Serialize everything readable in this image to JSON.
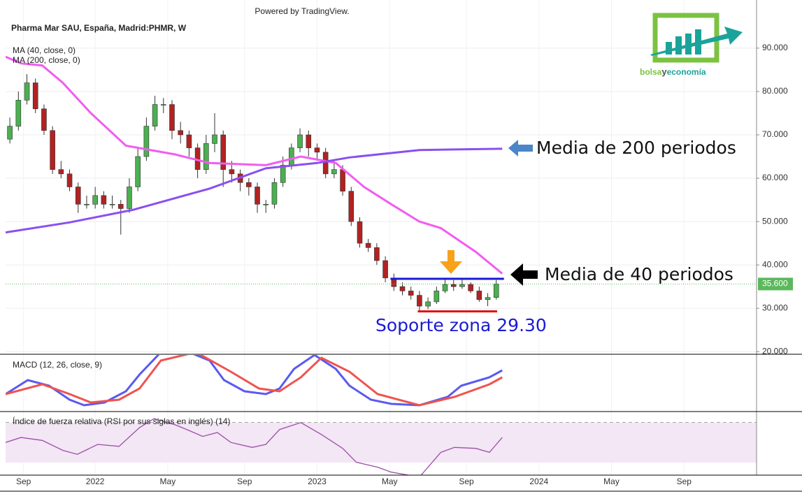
{
  "chart_data": {
    "type": "candlestick",
    "title": "Pharma Mar SAU, España, Madrid:PHMR, W",
    "credit": "Powered by TradingView.",
    "logo": {
      "left": "bolsa",
      "middle": "y",
      "right": "economía"
    },
    "legend_lines": [
      "MA (40, close, 0)",
      "MA (200, close, 0)"
    ],
    "annotations": [
      "Media de 200 periodos",
      "Media de 40 periodos",
      "Soporte zona 29.30"
    ],
    "xlim": [
      0,
      88
    ],
    "xticks": [
      {
        "value": 2.1,
        "label": "Sep"
      },
      {
        "value": 10.5,
        "label": "2022"
      },
      {
        "value": 19,
        "label": "May"
      },
      {
        "value": 28,
        "label": "Sep"
      },
      {
        "value": 36.5,
        "label": "2023"
      },
      {
        "value": 45,
        "label": "May"
      },
      {
        "value": 54,
        "label": "Sep"
      },
      {
        "value": 62.5,
        "label": "2024"
      },
      {
        "value": 71,
        "label": "May"
      },
      {
        "value": 79.5,
        "label": "Sep"
      }
    ],
    "ylim": [
      19.4,
      101.1
    ],
    "yticks": [
      {
        "value": 20,
        "label": "20.000"
      },
      {
        "value": 30,
        "label": "30.000"
      },
      {
        "value": 40,
        "label": "40.000"
      },
      {
        "value": 50,
        "label": "50.000"
      },
      {
        "value": 60,
        "label": "60.000"
      },
      {
        "value": 70,
        "label": "70.000"
      },
      {
        "value": 80,
        "label": "80.000"
      },
      {
        "value": 90,
        "label": "90.000"
      }
    ],
    "grid": true,
    "up_color": "#4caf50",
    "down_color": "#b22222",
    "last_price": {
      "value": 35.6,
      "label": "35.600",
      "color": "#5cb85c"
    },
    "open": [
      69,
      72,
      78,
      82,
      76,
      71,
      62,
      61,
      58,
      54,
      54,
      56,
      54,
      54,
      53,
      58,
      65,
      72,
      77,
      77,
      71,
      70,
      67,
      62,
      68,
      70,
      62,
      61,
      59,
      58,
      54,
      54,
      59,
      63,
      67,
      70,
      67,
      66,
      61,
      62,
      57,
      50,
      45,
      44,
      41,
      37,
      35,
      34,
      33,
      30.5,
      31.5,
      34,
      35.5,
      35,
      35.5,
      34,
      32,
      32.5
    ],
    "high": [
      74,
      80,
      84,
      83,
      77,
      72,
      64,
      62,
      59,
      56,
      58,
      57,
      56,
      55,
      60,
      67,
      74,
      79,
      78.5,
      78,
      73,
      71,
      68,
      70,
      75,
      71,
      64,
      62,
      60,
      59,
      55,
      60,
      65,
      68,
      71.5,
      71,
      68,
      67,
      64,
      63,
      58,
      51,
      46,
      45,
      42,
      38,
      36,
      35,
      34,
      32.5,
      35,
      37,
      36.5,
      37,
      36,
      35,
      33.5,
      36.5
    ],
    "low": [
      68,
      71,
      77,
      75,
      70,
      61,
      60,
      57,
      52,
      53,
      53,
      53,
      53,
      47,
      52,
      57,
      64,
      71,
      75,
      69,
      68,
      65,
      60,
      61,
      66,
      58,
      59,
      57,
      56,
      52,
      52,
      53,
      58,
      62,
      66,
      65,
      64,
      60,
      60,
      56,
      49,
      44,
      43,
      40,
      36,
      34,
      33,
      32,
      29.5,
      29.8,
      31,
      33.5,
      34,
      34.5,
      33.5,
      31.5,
      30.5,
      32
    ],
    "close": [
      72,
      78,
      82,
      76,
      71,
      62,
      61,
      58,
      54,
      54,
      56,
      54,
      54,
      53,
      58,
      65,
      72,
      77,
      77,
      71,
      70,
      67,
      62,
      68,
      70,
      62,
      61,
      59,
      58,
      54,
      54,
      59,
      63,
      67,
      70,
      67,
      66,
      61,
      62,
      57,
      50,
      45,
      44,
      41,
      37,
      35,
      34,
      33,
      30.5,
      31.5,
      34,
      35.5,
      35,
      35.5,
      34,
      32,
      32.5,
      35.6
    ],
    "moving_averages": [
      {
        "name": "MA 40",
        "color": "#f25cf0",
        "x": [
          0,
          1.8,
          4.3,
          6.7,
          10,
          14.1,
          19.8,
          23.9,
          30.5,
          34.6,
          38.7,
          42,
          45.2,
          48.5,
          51,
          55.1,
          58.2
        ],
        "values": [
          88,
          86.5,
          86,
          82,
          75,
          67.5,
          65.5,
          63.5,
          63,
          65,
          63.5,
          58,
          54,
          50,
          48.5,
          43,
          38
        ]
      },
      {
        "name": "MA 200",
        "color": "#8a4ff0",
        "x": [
          0,
          7.5,
          14.9,
          23.9,
          30.5,
          36.5,
          40.3,
          48.5,
          58.2
        ],
        "values": [
          47.5,
          49.8,
          52.7,
          57.6,
          62.3,
          63.5,
          64.8,
          66.5,
          66.8
        ]
      }
    ],
    "levels": [
      {
        "value": 36.8,
        "x": [
          45.1,
          58.4
        ],
        "color": "#1a1ad6"
      },
      {
        "value": 29.3,
        "x": [
          48.3,
          57.6
        ],
        "color": "#e01010"
      }
    ],
    "macd": {
      "title": "MACD (12, 26, close, 9)",
      "ylim": [
        -10,
        10
      ],
      "series": [
        {
          "name": "MACD",
          "color": "#5a5aef",
          "x": [
            0,
            2.6,
            5.1,
            7.5,
            9.2,
            11.6,
            14.1,
            15.7,
            18.2,
            20.7,
            23.9,
            25.6,
            28,
            30.5,
            32.1,
            33.8,
            36.2,
            38.7,
            40.3,
            42.8,
            45.2,
            48.5,
            51.8,
            53.4,
            56.7,
            58.2
          ],
          "values": [
            -4,
            1,
            -1,
            -6,
            -8,
            -7,
            -3,
            3,
            11,
            12,
            8,
            1,
            -3,
            -4,
            -2,
            5,
            10,
            5,
            -1,
            -6,
            -7.5,
            -8,
            -5,
            -1,
            2,
            4.5
          ]
        },
        {
          "name": "Signal",
          "color": "#ef5350",
          "x": [
            0,
            4.3,
            7.5,
            10,
            13.3,
            15.7,
            18.2,
            22.3,
            26.4,
            29.7,
            32.1,
            34.6,
            37,
            40.3,
            43.6,
            48.5,
            52.6,
            56.7,
            58.2
          ],
          "values": [
            -4,
            -0.5,
            -4,
            -7,
            -6,
            -2,
            8,
            11,
            4,
            -2,
            -3,
            2,
            9,
            4,
            -4,
            -8,
            -5,
            -0.5,
            2
          ]
        }
      ]
    },
    "rsi": {
      "title": "Índice de fuerza relativa (RSI por sus siglas en inglés) (14)",
      "ylim": [
        17,
        79
      ],
      "bands": [
        30,
        70
      ],
      "color": "#9c4fa8",
      "x": [
        0,
        1.8,
        4.3,
        6.7,
        8.4,
        10.8,
        13.3,
        15.7,
        17.4,
        19.8,
        21.5,
        23.1,
        24.8,
        26.4,
        28.9,
        30.5,
        32.1,
        34.6,
        37,
        39.5,
        41.1,
        43.6,
        45.2,
        48.5,
        51,
        52.6,
        55.1,
        56.7,
        57.5,
        58.2
      ],
      "values": [
        50,
        55,
        52,
        42,
        38,
        48,
        46,
        65,
        74,
        68,
        62,
        56,
        60,
        50,
        45,
        48,
        63,
        70,
        58,
        44,
        30,
        25,
        20,
        15,
        40,
        45,
        44,
        40,
        48,
        55
      ]
    }
  }
}
